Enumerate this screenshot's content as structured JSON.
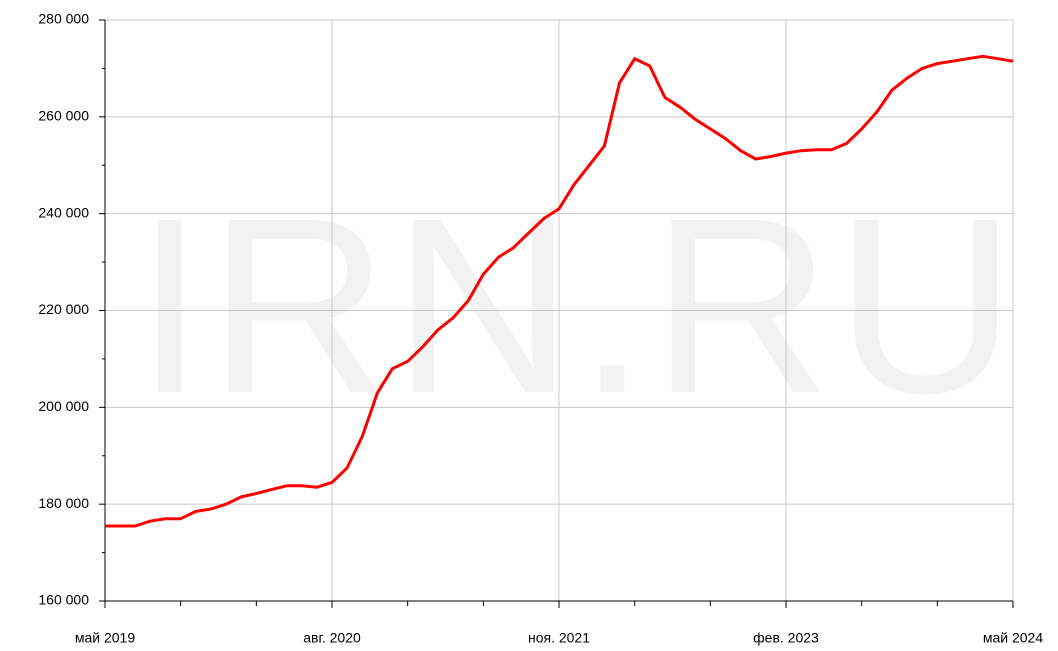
{
  "watermark": "IRN.RU",
  "chart_data": {
    "type": "line",
    "categories": [
      "май 2019",
      null,
      null,
      null,
      null,
      null,
      null,
      null,
      null,
      null,
      null,
      null,
      null,
      null,
      null,
      "авг. 2020",
      null,
      null,
      null,
      null,
      null,
      null,
      null,
      null,
      null,
      null,
      null,
      null,
      null,
      null,
      "ноя. 2021",
      null,
      null,
      null,
      null,
      null,
      null,
      null,
      null,
      null,
      null,
      null,
      null,
      null,
      null,
      "фев. 2023",
      null,
      null,
      null,
      null,
      null,
      null,
      null,
      null,
      null,
      null,
      null,
      null,
      null,
      null,
      "май 2024"
    ],
    "series": [
      {
        "color": "#ff0000",
        "values": [
          175500,
          175500,
          175500,
          176500,
          177000,
          177000,
          178500,
          179000,
          180000,
          181500,
          182200,
          183000,
          183800,
          183800,
          183500,
          184500,
          187500,
          194000,
          203000,
          208000,
          209500,
          212500,
          216000,
          218500,
          222000,
          227500,
          231000,
          233000,
          236000,
          239000,
          241000,
          246000,
          250000,
          254000,
          267000,
          272000,
          270500,
          264000,
          262000,
          259500,
          257500,
          255500,
          253000,
          251300,
          251800,
          252500,
          253000,
          253200,
          253200,
          254500,
          257500,
          261000,
          265500,
          268000,
          270000,
          271000,
          271500,
          272000,
          272500,
          272000,
          271500
        ]
      }
    ],
    "ylim": [
      160000,
      280000
    ],
    "yticks": [
      {
        "value": 160000,
        "label": "160 000"
      },
      {
        "value": 180000,
        "label": "180 000"
      },
      {
        "value": 200000,
        "label": "200 000"
      },
      {
        "value": 220000,
        "label": "220 000"
      },
      {
        "value": 240000,
        "label": "240 000"
      },
      {
        "value": 260000,
        "label": "260 000"
      },
      {
        "value": 280000,
        "label": "280 000"
      }
    ],
    "grid": true
  }
}
